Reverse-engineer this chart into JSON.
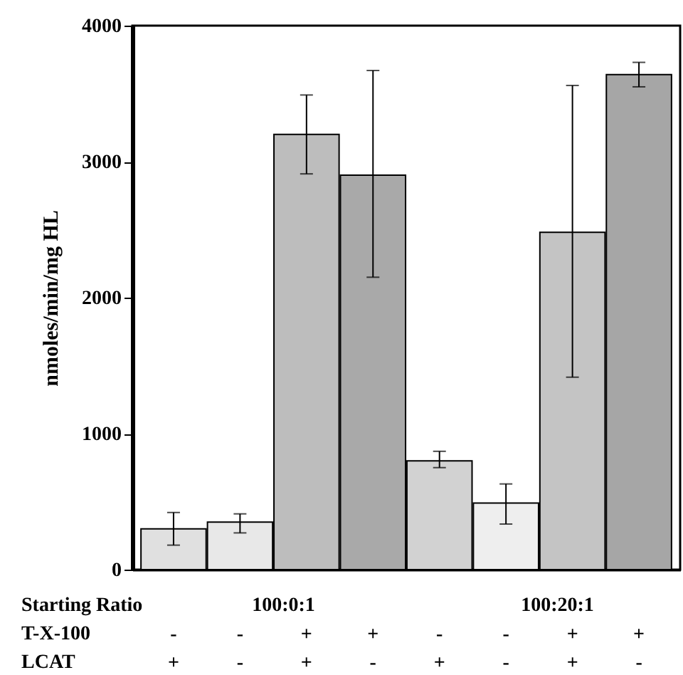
{
  "chart_data": {
    "type": "bar",
    "ylabel": "nmoles/min/mg HL",
    "categories": [
      "-\n+",
      "-\n-",
      "+\n+",
      "+\n-",
      "-\n+",
      "-\n-",
      "+\n+",
      "+\n-"
    ],
    "values": [
      300,
      350,
      3200,
      2900,
      800,
      490,
      2480,
      3640
    ],
    "errors": [
      [
        180,
        420
      ],
      [
        270,
        410
      ],
      [
        2910,
        3490
      ],
      [
        2150,
        3670
      ],
      [
        750,
        870
      ],
      [
        335,
        630
      ],
      [
        1415,
        3560
      ],
      [
        3550,
        3730
      ]
    ],
    "colors": [
      "#e0e0e0",
      "#e8e8e8",
      "#bdbdbd",
      "#a9a9a9",
      "#d2d2d2",
      "#eeeeee",
      "#c4c4c4",
      "#a6a6a6"
    ],
    "ylim": [
      0,
      4000
    ],
    "yticks": [
      0,
      1000,
      2000,
      3000,
      4000
    ],
    "annotations": [
      "Starting Ratio",
      "T-X-100",
      "LCAT",
      "100:0:1",
      "100:20:1"
    ]
  }
}
